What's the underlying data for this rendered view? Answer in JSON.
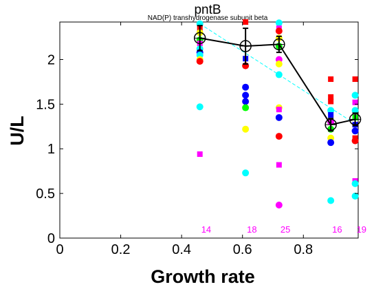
{
  "chart_data": {
    "type": "scatter",
    "title": "pntB",
    "subtitle": "NAD(P) transhydrogenase subunit beta",
    "xlabel": "Growth rate",
    "ylabel": "U/L",
    "xlim": [
      0,
      0.98
    ],
    "ylim": [
      0,
      2.42
    ],
    "xticks": [
      "0",
      "0.2",
      "0.4",
      "0.6",
      "0.8"
    ],
    "yticks": [
      "0",
      "0.5",
      "1",
      "1.5",
      "2"
    ],
    "grid": false,
    "label_color": "#ff00ff",
    "conditions": [
      {
        "x": 0.46,
        "count_label": "14",
        "mean": 2.24,
        "err": 0.14
      },
      {
        "x": 0.61,
        "count_label": "18",
        "mean": 2.15,
        "err": 0.2
      },
      {
        "x": 0.72,
        "count_label": "25",
        "mean": 2.17,
        "err": 0.09
      },
      {
        "x": 0.89,
        "count_label": "16",
        "mean": 1.27,
        "err": 0.07
      },
      {
        "x": 0.97,
        "count_label": "19",
        "mean": 1.33,
        "err": 0.07
      }
    ],
    "mean_line": {
      "color": "#000000",
      "marker": "open-circle-plus"
    },
    "trend_line": {
      "color": "#00ffff",
      "style": "dashed",
      "x": [
        0.46,
        0.97
      ],
      "y": [
        2.4,
        1.28
      ]
    },
    "points": [
      {
        "x": 0.46,
        "y": 2.4,
        "marker": "circle",
        "color": "#00ffff"
      },
      {
        "x": 0.46,
        "y": 2.35,
        "marker": "square",
        "color": "#ff0000"
      },
      {
        "x": 0.46,
        "y": 2.3,
        "marker": "circle",
        "color": "#ffff00"
      },
      {
        "x": 0.46,
        "y": 2.22,
        "marker": "circle",
        "color": "#00ff00"
      },
      {
        "x": 0.46,
        "y": 2.18,
        "marker": "square",
        "color": "#ff00ff"
      },
      {
        "x": 0.46,
        "y": 2.12,
        "marker": "circle",
        "color": "#00ffff"
      },
      {
        "x": 0.46,
        "y": 2.08,
        "marker": "circle",
        "color": "#0000ff"
      },
      {
        "x": 0.46,
        "y": 2.05,
        "marker": "circle",
        "color": "#00ffff"
      },
      {
        "x": 0.46,
        "y": 2.0,
        "marker": "circle",
        "color": "#ffff00"
      },
      {
        "x": 0.46,
        "y": 1.98,
        "marker": "circle",
        "color": "#ff0000"
      },
      {
        "x": 0.46,
        "y": 1.47,
        "marker": "circle",
        "color": "#00ffff"
      },
      {
        "x": 0.46,
        "y": 0.94,
        "marker": "square",
        "color": "#ff00ff"
      },
      {
        "x": 0.61,
        "y": 2.42,
        "marker": "square",
        "color": "#ff0000"
      },
      {
        "x": 0.61,
        "y": 2.01,
        "marker": "square",
        "color": "#0000ff"
      },
      {
        "x": 0.61,
        "y": 1.93,
        "marker": "circle",
        "color": "#ff0000"
      },
      {
        "x": 0.61,
        "y": 1.69,
        "marker": "circle",
        "color": "#0000ff"
      },
      {
        "x": 0.61,
        "y": 1.6,
        "marker": "circle",
        "color": "#0000ff"
      },
      {
        "x": 0.61,
        "y": 1.53,
        "marker": "circle",
        "color": "#0000ff"
      },
      {
        "x": 0.61,
        "y": 1.46,
        "marker": "circle",
        "color": "#00ff00"
      },
      {
        "x": 0.61,
        "y": 1.22,
        "marker": "circle",
        "color": "#ffff00"
      },
      {
        "x": 0.61,
        "y": 0.73,
        "marker": "circle",
        "color": "#00ffff"
      },
      {
        "x": 0.72,
        "y": 2.41,
        "marker": "circle",
        "color": "#00ffff"
      },
      {
        "x": 0.72,
        "y": 2.35,
        "marker": "square",
        "color": "#ff00ff"
      },
      {
        "x": 0.72,
        "y": 2.32,
        "marker": "circle",
        "color": "#ff0000"
      },
      {
        "x": 0.72,
        "y": 2.24,
        "marker": "circle",
        "color": "#ffff00"
      },
      {
        "x": 0.72,
        "y": 2.15,
        "marker": "circle",
        "color": "#00ff00"
      },
      {
        "x": 0.72,
        "y": 2.0,
        "marker": "circle",
        "color": "#ff00ff"
      },
      {
        "x": 0.72,
        "y": 1.95,
        "marker": "circle",
        "color": "#ffff00"
      },
      {
        "x": 0.72,
        "y": 1.83,
        "marker": "circle",
        "color": "#00ffff"
      },
      {
        "x": 0.72,
        "y": 1.46,
        "marker": "circle",
        "color": "#ffff00"
      },
      {
        "x": 0.72,
        "y": 1.44,
        "marker": "square",
        "color": "#ff00ff"
      },
      {
        "x": 0.72,
        "y": 1.35,
        "marker": "circle",
        "color": "#0000ff"
      },
      {
        "x": 0.72,
        "y": 1.14,
        "marker": "circle",
        "color": "#ff0000"
      },
      {
        "x": 0.72,
        "y": 0.82,
        "marker": "square",
        "color": "#ff00ff"
      },
      {
        "x": 0.72,
        "y": 0.37,
        "marker": "circle",
        "color": "#ff00ff"
      },
      {
        "x": 0.89,
        "y": 1.78,
        "marker": "square",
        "color": "#ff0000"
      },
      {
        "x": 0.89,
        "y": 1.58,
        "marker": "square",
        "color": "#ff0000"
      },
      {
        "x": 0.89,
        "y": 1.53,
        "marker": "square",
        "color": "#ff0000"
      },
      {
        "x": 0.89,
        "y": 1.43,
        "marker": "circle",
        "color": "#00ffff"
      },
      {
        "x": 0.89,
        "y": 1.38,
        "marker": "square",
        "color": "#0000ff"
      },
      {
        "x": 0.89,
        "y": 1.3,
        "marker": "circle",
        "color": "#ff00ff"
      },
      {
        "x": 0.89,
        "y": 1.22,
        "marker": "circle",
        "color": "#00ff00"
      },
      {
        "x": 0.89,
        "y": 1.12,
        "marker": "circle",
        "color": "#ffff00"
      },
      {
        "x": 0.89,
        "y": 1.07,
        "marker": "circle",
        "color": "#0000ff"
      },
      {
        "x": 0.89,
        "y": 0.42,
        "marker": "circle",
        "color": "#00ffff"
      },
      {
        "x": 0.97,
        "y": 1.78,
        "marker": "square",
        "color": "#ff0000"
      },
      {
        "x": 0.97,
        "y": 1.6,
        "marker": "circle",
        "color": "#00ffff"
      },
      {
        "x": 0.97,
        "y": 1.52,
        "marker": "square",
        "color": "#ff00ff"
      },
      {
        "x": 0.97,
        "y": 1.43,
        "marker": "circle",
        "color": "#00ffff"
      },
      {
        "x": 0.97,
        "y": 1.35,
        "marker": "square",
        "color": "#00ff00"
      },
      {
        "x": 0.97,
        "y": 1.27,
        "marker": "square",
        "color": "#0000ff"
      },
      {
        "x": 0.97,
        "y": 1.2,
        "marker": "circle",
        "color": "#0000ff"
      },
      {
        "x": 0.97,
        "y": 1.12,
        "marker": "square",
        "color": "#ff0000"
      },
      {
        "x": 0.97,
        "y": 1.09,
        "marker": "circle",
        "color": "#ff0000"
      },
      {
        "x": 0.97,
        "y": 0.64,
        "marker": "square",
        "color": "#ff00ff"
      },
      {
        "x": 0.97,
        "y": 0.61,
        "marker": "circle",
        "color": "#00ffff"
      },
      {
        "x": 0.97,
        "y": 0.47,
        "marker": "circle",
        "color": "#00ffff"
      }
    ]
  }
}
